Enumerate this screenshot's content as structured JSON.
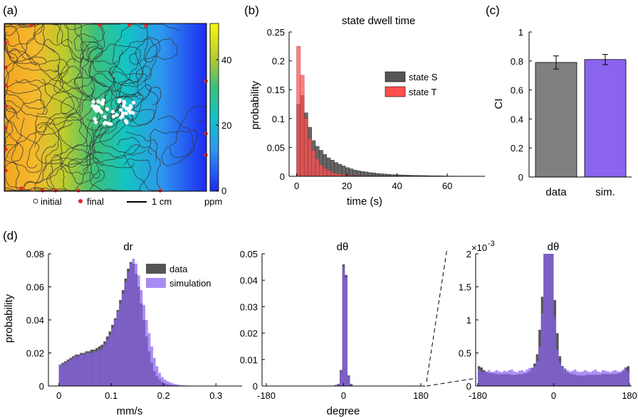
{
  "panels": {
    "a": "(a)",
    "b": "(b)",
    "c": "(c)",
    "d": "(d)"
  },
  "colors": {
    "data": "#555555",
    "sim": "#8A63EE",
    "stateS": "#555555",
    "stateT": "#FF5050",
    "dot": "#E8251D"
  },
  "trajectory_panel": {
    "colorbar_ticks": [
      "40",
      "20",
      "0"
    ],
    "colorbar_unit": "ppm",
    "legend_initial": "initial",
    "legend_final": "final",
    "scale_label": "1 cm"
  },
  "chart_data": [
    {
      "id": "dwell",
      "type": "bar",
      "title": "state dwell time",
      "xlabel": "time (s)",
      "ylabel": "probability",
      "xlim": [
        -3,
        75
      ],
      "ylim": [
        0,
        0.25
      ],
      "xticks": [
        "0",
        "20",
        "40",
        "60"
      ],
      "yticks": [
        "0",
        "0.05",
        "0.1",
        "0.15",
        "0.2",
        "0.25"
      ],
      "bin_width": 1.5,
      "legend": [
        "state S",
        "state T"
      ],
      "series": [
        {
          "name": "state S",
          "start": 0,
          "values": [
            0.125,
            0.14,
            0.11,
            0.085,
            0.062,
            0.052,
            0.045,
            0.038,
            0.032,
            0.028,
            0.024,
            0.021,
            0.018,
            0.015,
            0.013,
            0.011,
            0.0095,
            0.0085,
            0.0075,
            0.0065,
            0.006,
            0.005,
            0.0045,
            0.004,
            0.0035,
            0.003,
            0.0028,
            0.0025,
            0.0023,
            0.002,
            0.0018,
            0.0016,
            0.0015,
            0.0013,
            0.0012,
            0.001,
            0.0009,
            0.0008,
            0.0007,
            0.0006,
            0.0005,
            0.0005,
            0.0004,
            0.0004,
            0.0003,
            0.0003,
            0.0003,
            0.0002,
            0.0002,
            0.0002
          ]
        },
        {
          "name": "state T",
          "start": 0,
          "values": [
            0.225,
            0.175,
            0.1,
            0.065,
            0.045,
            0.03,
            0.02,
            0.014,
            0.01,
            0.007,
            0.005,
            0.004,
            0.003,
            0.002,
            0.0015,
            0.001,
            0.0008,
            0.0006,
            0.0004,
            0.0003
          ]
        }
      ]
    },
    {
      "id": "ci",
      "type": "bar",
      "ylabel": "CI",
      "ylim": [
        0,
        1
      ],
      "yticks": [
        "0",
        "0.2",
        "0.4",
        "0.6",
        "0.8",
        "1"
      ],
      "categories": [
        "data",
        "sim."
      ],
      "values": [
        0.79,
        0.81
      ],
      "errors": [
        0.045,
        0.035
      ]
    },
    {
      "id": "dr",
      "type": "bar",
      "title": "dr",
      "xlabel": "mm/s",
      "ylabel": "probability",
      "xlim": [
        -0.02,
        0.35
      ],
      "ylim": [
        0,
        0.08
      ],
      "xticks": [
        "0",
        "0.1",
        "0.2",
        "0.3"
      ],
      "yticks": [
        "0",
        "0.02",
        "0.04",
        "0.06",
        "0.08"
      ],
      "bin_width": 0.005,
      "legend": [
        "data",
        "simulation"
      ],
      "series": [
        {
          "name": "data",
          "start": 0,
          "values": [
            0.013,
            0.014,
            0.015,
            0.016,
            0.017,
            0.018,
            0.019,
            0.019,
            0.02,
            0.02,
            0.021,
            0.021,
            0.022,
            0.022,
            0.023,
            0.024,
            0.025,
            0.027,
            0.03,
            0.033,
            0.037,
            0.041,
            0.046,
            0.052,
            0.058,
            0.065,
            0.071,
            0.075,
            0.074,
            0.068,
            0.06,
            0.05,
            0.04,
            0.03,
            0.021,
            0.014,
            0.009,
            0.006,
            0.004,
            0.0025,
            0.0015,
            0.001,
            0.0008,
            0.0006,
            0.0004,
            0.0003,
            0.0002,
            0.0002,
            0.0001,
            0.0001,
            0.0001,
            0.0001,
            0.0001,
            0.0001,
            0.0001,
            0.0001,
            0.0001,
            0.0001,
            0.0001,
            0.0001,
            0.0001,
            0.0001,
            0.0001,
            0.0001,
            0.0001,
            0.0001
          ]
        },
        {
          "name": "simulation",
          "start": 0,
          "values": [
            0.013,
            0.013,
            0.014,
            0.015,
            0.016,
            0.017,
            0.018,
            0.018,
            0.019,
            0.019,
            0.02,
            0.02,
            0.02,
            0.021,
            0.021,
            0.022,
            0.023,
            0.025,
            0.028,
            0.031,
            0.035,
            0.04,
            0.045,
            0.05,
            0.056,
            0.063,
            0.069,
            0.074,
            0.077,
            0.074,
            0.067,
            0.058,
            0.049,
            0.04,
            0.032,
            0.024,
            0.017,
            0.012,
            0.008,
            0.0055,
            0.004,
            0.003,
            0.0022,
            0.0016,
            0.0012,
            0.0009,
            0.0006,
            0.0004,
            0.0003,
            0.0002,
            0.0002,
            0.0001,
            0.0001,
            0.0001,
            0.0001,
            0.0001,
            0.0001,
            0.0001,
            0.0001,
            0.0001,
            0.0001,
            0.0001,
            0.0001,
            0.0001,
            0.0001,
            0.0001
          ]
        }
      ]
    },
    {
      "id": "dtheta",
      "type": "bar",
      "title": "dθ",
      "xlabel": "degree",
      "xlim": [
        -190,
        190
      ],
      "ylim": [
        0,
        0.05
      ],
      "xticks": [
        "-180",
        "0",
        "180"
      ],
      "yticks": [
        "0",
        "0.01",
        "0.02",
        "0.03",
        "0.04",
        "0.05"
      ],
      "bin_width": 6,
      "series": [
        {
          "name": "data",
          "start": -21,
          "values": [
            0.0004,
            0.0008,
            0.006,
            0.046,
            0.042,
            0.004,
            0.0008
          ]
        },
        {
          "name": "simulation",
          "start": -21,
          "values": [
            0.0003,
            0.0006,
            0.0055,
            0.045,
            0.041,
            0.0035,
            0.0006
          ]
        }
      ]
    },
    {
      "id": "dtheta_zoom",
      "type": "bar",
      "title": "dθ",
      "y_exponent_label": "×10",
      "y_exponent": "-3",
      "xlim": [
        -185,
        185
      ],
      "ylim": [
        0,
        2
      ],
      "xticks": [
        "-180",
        "0",
        "180"
      ],
      "yticks": [
        "0",
        "0.5",
        "1",
        "1.5",
        "2"
      ],
      "bin_width": 6,
      "series": [
        {
          "name": "data",
          "start": -180,
          "values": [
            0.3,
            0.28,
            0.24,
            0.21,
            0.2,
            0.2,
            0.19,
            0.18,
            0.18,
            0.18,
            0.18,
            0.18,
            0.18,
            0.17,
            0.17,
            0.17,
            0.18,
            0.18,
            0.19,
            0.2,
            0.22,
            0.27,
            0.34,
            0.48,
            0.85,
            1.35,
            2.0,
            2.0,
            2.0,
            2.0,
            1.3,
            0.8,
            0.45,
            0.3,
            0.25,
            0.21,
            0.19,
            0.18,
            0.17,
            0.16,
            0.16,
            0.16,
            0.16,
            0.17,
            0.17,
            0.17,
            0.17,
            0.17,
            0.17,
            0.18,
            0.18,
            0.18,
            0.18,
            0.18,
            0.18,
            0.19,
            0.2,
            0.23,
            0.28,
            0.3
          ]
        },
        {
          "name": "simulation",
          "start": -180,
          "values": [
            0.25,
            0.22,
            0.21,
            0.22,
            0.24,
            0.21,
            0.22,
            0.24,
            0.22,
            0.21,
            0.23,
            0.22,
            0.24,
            0.25,
            0.22,
            0.21,
            0.23,
            0.24,
            0.22,
            0.25,
            0.27,
            0.28,
            0.3,
            0.38,
            0.6,
            1.1,
            2.0,
            2.0,
            2.0,
            2.0,
            1.05,
            0.55,
            0.35,
            0.29,
            0.27,
            0.24,
            0.22,
            0.23,
            0.25,
            0.22,
            0.21,
            0.22,
            0.24,
            0.22,
            0.21,
            0.23,
            0.25,
            0.22,
            0.21,
            0.24,
            0.23,
            0.22,
            0.21,
            0.23,
            0.24,
            0.22,
            0.22,
            0.25,
            0.27,
            0.22
          ]
        }
      ]
    }
  ]
}
